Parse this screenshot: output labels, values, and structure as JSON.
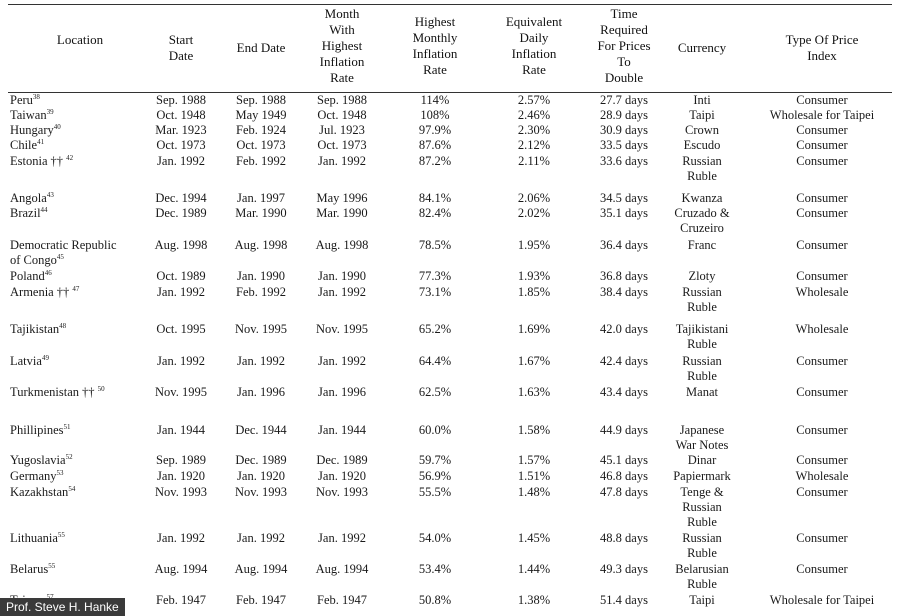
{
  "headers": {
    "location": [
      "Location"
    ],
    "start_date": [
      "Start",
      "Date"
    ],
    "end_date": [
      "End Date"
    ],
    "month_highest": [
      "Month",
      "With",
      "Highest",
      "Inflation",
      "Rate"
    ],
    "highest_monthly": [
      "Highest",
      "Monthly",
      "Inflation",
      "Rate"
    ],
    "equiv_daily": [
      "Equivalent",
      "Daily",
      "Inflation",
      "Rate"
    ],
    "time_required": [
      "Time",
      "Required",
      "For Prices",
      "To",
      "Double"
    ],
    "currency": [
      "Currency"
    ],
    "price_index": [
      "Type Of Price",
      "Index"
    ]
  },
  "rows": [
    {
      "location": [
        "Peru"
      ],
      "note": "38",
      "dagger": "",
      "start": "Sep. 1988",
      "end": "Sep. 1988",
      "month": "Sep. 1988",
      "highest": "114%",
      "daily": "2.57%",
      "time": "27.7 days",
      "currency": [
        "Inti"
      ],
      "index": "Consumer"
    },
    {
      "location": [
        "Taiwan"
      ],
      "note": "39",
      "dagger": "",
      "start": "Oct. 1948",
      "end": "May 1949",
      "month": "Oct. 1948",
      "highest": "108%",
      "daily": "2.46%",
      "time": "28.9 days",
      "currency": [
        "Taipi"
      ],
      "index": "Wholesale for Taipei"
    },
    {
      "location": [
        "Hungary"
      ],
      "note": "40",
      "dagger": "",
      "start": "Mar. 1923",
      "end": "Feb. 1924",
      "month": "Jul. 1923",
      "highest": "97.9%",
      "daily": "2.30%",
      "time": "30.9 days",
      "currency": [
        "Crown"
      ],
      "index": "Consumer"
    },
    {
      "location": [
        "Chile"
      ],
      "note": "41",
      "dagger": "",
      "start": "Oct. 1973",
      "end": "Oct. 1973",
      "month": "Oct. 1973",
      "highest": "87.6%",
      "daily": "2.12%",
      "time": "33.5 days",
      "currency": [
        "Escudo"
      ],
      "index": "Consumer"
    },
    {
      "location": [
        "Estonia"
      ],
      "note": "42",
      "dagger": "††",
      "start": "Jan. 1992",
      "end": "Feb. 1992",
      "month": "Jan. 1992",
      "highest": "87.2%",
      "daily": "2.11%",
      "time": "33.6 days",
      "currency": [
        "Russian",
        "Ruble"
      ],
      "index": "Consumer"
    },
    {
      "location": [
        "Angola"
      ],
      "note": "43",
      "dagger": "",
      "start": "Dec. 1994",
      "end": "Jan. 1997",
      "month": "May 1996",
      "highest": "84.1%",
      "daily": "2.06%",
      "time": "34.5 days",
      "currency": [
        "Kwanza"
      ],
      "index": "Consumer"
    },
    {
      "location": [
        "Brazil"
      ],
      "note": "44",
      "dagger": "",
      "start": "Dec. 1989",
      "end": "Mar. 1990",
      "month": "Mar. 1990",
      "highest": "82.4%",
      "daily": "2.02%",
      "time": "35.1 days",
      "currency": [
        "Cruzado &",
        "Cruzeiro"
      ],
      "index": "Consumer"
    },
    {
      "location": [
        "Democratic Republic",
        "of Congo"
      ],
      "note": "45",
      "dagger": "",
      "start": "Aug. 1998",
      "end": "Aug. 1998",
      "month": "Aug. 1998",
      "highest": "78.5%",
      "daily": "1.95%",
      "time": "36.4 days",
      "currency": [
        "Franc"
      ],
      "index": "Consumer"
    },
    {
      "location": [
        "Poland"
      ],
      "note": "46",
      "dagger": "",
      "start": "Oct. 1989",
      "end": "Jan. 1990",
      "month": "Jan. 1990",
      "highest": "77.3%",
      "daily": "1.93%",
      "time": "36.8 days",
      "currency": [
        "Zloty"
      ],
      "index": "Consumer"
    },
    {
      "location": [
        "Armenia"
      ],
      "note": "47",
      "dagger": "††",
      "start": "Jan. 1992",
      "end": "Feb. 1992",
      "month": "Jan. 1992",
      "highest": "73.1%",
      "daily": "1.85%",
      "time": "38.4 days",
      "currency": [
        "Russian",
        "Ruble"
      ],
      "index": "Wholesale"
    },
    {
      "location": [
        "Tajikistan"
      ],
      "note": "48",
      "dagger": "",
      "start": "Oct. 1995",
      "end": "Nov. 1995",
      "month": "Nov. 1995",
      "highest": "65.2%",
      "daily": "1.69%",
      "time": "42.0 days",
      "currency": [
        "Tajikistani",
        "Ruble"
      ],
      "index": "Wholesale"
    },
    {
      "location": [
        "Latvia"
      ],
      "note": "49",
      "dagger": "",
      "start": "Jan. 1992",
      "end": "Jan. 1992",
      "month": "Jan. 1992",
      "highest": "64.4%",
      "daily": "1.67%",
      "time": "42.4 days",
      "currency": [
        "Russian",
        "Ruble"
      ],
      "index": "Consumer"
    },
    {
      "location": [
        "Turkmenistan"
      ],
      "note": "50",
      "dagger": "††",
      "start": "Nov. 1995",
      "end": "Jan. 1996",
      "month": "Jan. 1996",
      "highest": "62.5%",
      "daily": "1.63%",
      "time": "43.4 days",
      "currency": [
        "Manat"
      ],
      "index": "Consumer"
    },
    {
      "location": [
        "Phillipines"
      ],
      "note": "51",
      "dagger": "",
      "start": "Jan. 1944",
      "end": "Dec. 1944",
      "month": "Jan. 1944",
      "highest": "60.0%",
      "daily": "1.58%",
      "time": "44.9 days",
      "currency": [
        "Japanese",
        "War Notes"
      ],
      "index": "Consumer"
    },
    {
      "location": [
        "Yugoslavia"
      ],
      "note": "52",
      "dagger": "",
      "start": "Sep. 1989",
      "end": "Dec. 1989",
      "month": "Dec. 1989",
      "highest": "59.7%",
      "daily": "1.57%",
      "time": "45.1 days",
      "currency": [
        "Dinar"
      ],
      "index": "Consumer"
    },
    {
      "location": [
        "Germany"
      ],
      "note": "53",
      "dagger": "",
      "start": "Jan. 1920",
      "end": "Jan. 1920",
      "month": "Jan. 1920",
      "highest": "56.9%",
      "daily": "1.51%",
      "time": "46.8 days",
      "currency": [
        "Papiermark"
      ],
      "index": "Wholesale"
    },
    {
      "location": [
        "Kazakhstan"
      ],
      "note": "54",
      "dagger": "",
      "start": "Nov. 1993",
      "end": "Nov. 1993",
      "month": "Nov. 1993",
      "highest": "55.5%",
      "daily": "1.48%",
      "time": "47.8 days",
      "currency": [
        "Tenge &",
        "Russian",
        "Ruble"
      ],
      "index": "Consumer"
    },
    {
      "location": [
        "Lithuania"
      ],
      "note": "55",
      "dagger": "",
      "start": "Jan. 1992",
      "end": "Jan. 1992",
      "month": "Jan. 1992",
      "highest": "54.0%",
      "daily": "1.45%",
      "time": "48.8 days",
      "currency": [
        "Russian",
        "Ruble"
      ],
      "index": "Consumer"
    },
    {
      "location": [
        "Belarus"
      ],
      "note": "55",
      "dagger": "",
      "start": "Aug. 1994",
      "end": "Aug. 1994",
      "month": "Aug. 1994",
      "highest": "53.4%",
      "daily": "1.44%",
      "time": "49.3 days",
      "currency": [
        "Belarusian",
        "Ruble"
      ],
      "index": "Consumer"
    },
    {
      "location": [
        "Taiwan"
      ],
      "note": "57",
      "dagger": "",
      "start": "Feb. 1947",
      "end": "Feb. 1947",
      "month": "Feb. 1947",
      "highest": "50.8%",
      "daily": "1.38%",
      "time": "51.4 days",
      "currency": [
        "Taipi"
      ],
      "index": "Wholesale for Taipei"
    }
  ],
  "credit": "Prof. Steve H. Hanke"
}
